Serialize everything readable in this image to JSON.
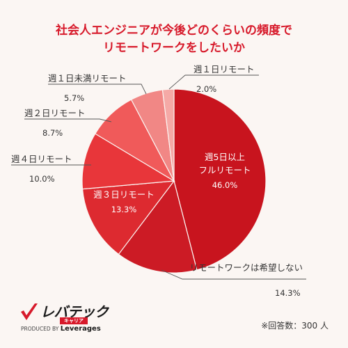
{
  "title_line1": "社会人エンジニアが今後どのくらいの頻度で",
  "title_line2": "リモートワークをしたいか",
  "chart_data": {
    "type": "pie",
    "start_angle_deg": 0,
    "direction": "clockwise",
    "slices": [
      {
        "label_lines": [
          "週5日以上",
          "フルリモート"
        ],
        "value": 46.0,
        "display": "46.0%",
        "color": "#c8141e"
      },
      {
        "label_lines": [
          "リモートワークは希望しない"
        ],
        "value": 14.3,
        "display": "14.3%",
        "color": "#cc1b25"
      },
      {
        "label_lines": [
          "週３日リモート"
        ],
        "value": 13.3,
        "display": "13.3%",
        "color": "#dd2a30"
      },
      {
        "label_lines": [
          "週４日リモート"
        ],
        "value": 10.0,
        "display": "10.0%",
        "color": "#e8363a"
      },
      {
        "label_lines": [
          "週２日リモート"
        ],
        "value": 8.7,
        "display": "8.7%",
        "color": "#f05a5a"
      },
      {
        "label_lines": [
          "週１日未満リモート"
        ],
        "value": 5.7,
        "display": "5.7%",
        "color": "#f18785"
      },
      {
        "label_lines": [
          "週１日リモート"
        ],
        "value": 2.0,
        "display": "2.0%",
        "color": "#f5a9a6"
      }
    ]
  },
  "logo": {
    "name": "レバテック",
    "sub": "キャリア",
    "produced_by": "PRODUCED BY",
    "brand": "Leverages"
  },
  "note": "※回答数：300 人"
}
